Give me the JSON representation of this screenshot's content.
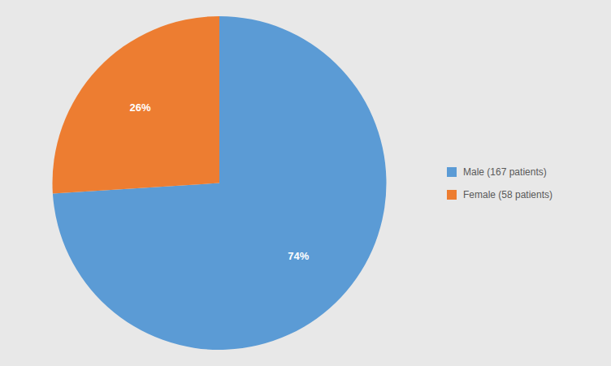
{
  "chart_data": {
    "type": "pie",
    "categories": [
      "Male (167 patients)",
      "Female (58 patients)"
    ],
    "values": [
      74,
      26
    ],
    "value_labels": [
      "74%",
      "26%"
    ],
    "colors": [
      "#5B9BD5",
      "#ED7D31"
    ],
    "data_labels": true,
    "legend": "right"
  }
}
